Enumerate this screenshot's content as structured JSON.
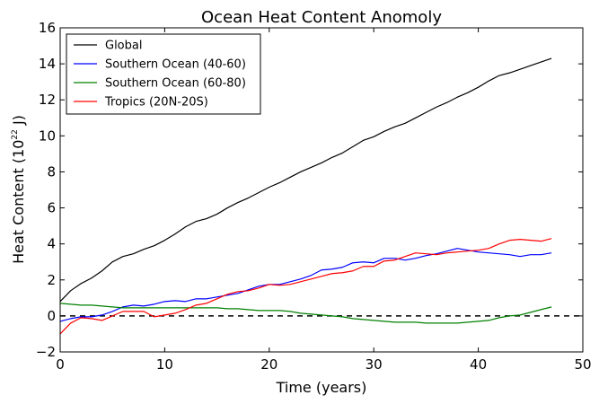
{
  "chart_data": {
    "type": "line",
    "title": "Ocean Heat Content Anomoly",
    "xlabel": "Time (years)",
    "ylabel_main": "Heat Content (10",
    "ylabel_exp": "22",
    "ylabel_unit": " J)",
    "xlim": [
      0,
      50
    ],
    "ylim": [
      -2,
      16
    ],
    "xticks": [
      0,
      10,
      20,
      30,
      40,
      50
    ],
    "yticks": [
      -2,
      0,
      2,
      4,
      6,
      8,
      10,
      12,
      14,
      16
    ],
    "xtick_labels": [
      "0",
      "10",
      "20",
      "30",
      "40",
      "50"
    ],
    "ytick_labels": [
      "−2",
      "0",
      "2",
      "4",
      "6",
      "8",
      "10",
      "12",
      "14",
      "16"
    ],
    "legend_position": "top-left",
    "grid": false,
    "reference_line": {
      "y": 0,
      "style": "dashed",
      "color": "#000000"
    },
    "x": [
      0,
      1,
      2,
      3,
      4,
      5,
      6,
      7,
      8,
      9,
      10,
      11,
      12,
      13,
      14,
      15,
      16,
      17,
      18,
      19,
      20,
      21,
      22,
      23,
      24,
      25,
      26,
      27,
      28,
      29,
      30,
      31,
      32,
      33,
      34,
      35,
      36,
      37,
      38,
      39,
      40,
      41,
      42,
      43,
      44,
      45,
      46,
      47
    ],
    "series": [
      {
        "name": "Global",
        "color": "#000000",
        "values": [
          0.8,
          1.4,
          1.8,
          2.1,
          2.5,
          3.0,
          3.3,
          3.45,
          3.7,
          3.9,
          4.2,
          4.55,
          4.95,
          5.25,
          5.4,
          5.65,
          6.0,
          6.3,
          6.55,
          6.85,
          7.15,
          7.4,
          7.7,
          8.0,
          8.25,
          8.5,
          8.8,
          9.05,
          9.4,
          9.75,
          9.95,
          10.25,
          10.5,
          10.7,
          11.0,
          11.3,
          11.6,
          11.85,
          12.15,
          12.4,
          12.7,
          13.05,
          13.35,
          13.5,
          13.7,
          13.9,
          14.1,
          14.3
        ]
      },
      {
        "name": "Southern Ocean (40-60)",
        "color": "#0000ff",
        "values": [
          -0.3,
          -0.15,
          -0.05,
          -0.05,
          0.05,
          0.25,
          0.5,
          0.6,
          0.55,
          0.65,
          0.8,
          0.85,
          0.8,
          0.95,
          0.95,
          1.05,
          1.15,
          1.25,
          1.45,
          1.65,
          1.75,
          1.75,
          1.9,
          2.05,
          2.25,
          2.55,
          2.6,
          2.7,
          2.95,
          3.0,
          2.95,
          3.2,
          3.2,
          3.1,
          3.2,
          3.35,
          3.45,
          3.6,
          3.75,
          3.65,
          3.55,
          3.5,
          3.45,
          3.4,
          3.3,
          3.4,
          3.4,
          3.5
        ]
      },
      {
        "name": "Southern Ocean (60-80)",
        "color": "#008000",
        "values": [
          0.7,
          0.65,
          0.6,
          0.6,
          0.55,
          0.5,
          0.45,
          0.45,
          0.45,
          0.45,
          0.45,
          0.45,
          0.45,
          0.45,
          0.45,
          0.45,
          0.4,
          0.4,
          0.35,
          0.3,
          0.3,
          0.3,
          0.25,
          0.15,
          0.1,
          0.05,
          0.0,
          -0.05,
          -0.15,
          -0.2,
          -0.25,
          -0.3,
          -0.35,
          -0.35,
          -0.35,
          -0.4,
          -0.4,
          -0.4,
          -0.4,
          -0.35,
          -0.3,
          -0.25,
          -0.1,
          0.0,
          0.05,
          0.2,
          0.35,
          0.5
        ]
      },
      {
        "name": "Tropics (20N-20S)",
        "color": "#ff0000",
        "values": [
          -1.0,
          -0.4,
          -0.1,
          -0.15,
          -0.25,
          0.0,
          0.25,
          0.25,
          0.25,
          -0.05,
          0.05,
          0.15,
          0.35,
          0.6,
          0.7,
          0.95,
          1.2,
          1.35,
          1.4,
          1.55,
          1.75,
          1.7,
          1.75,
          1.9,
          2.05,
          2.2,
          2.35,
          2.4,
          2.5,
          2.75,
          2.75,
          3.05,
          3.1,
          3.3,
          3.5,
          3.45,
          3.4,
          3.5,
          3.55,
          3.6,
          3.65,
          3.75,
          4.0,
          4.2,
          4.25,
          4.2,
          4.15,
          4.3
        ]
      }
    ]
  }
}
